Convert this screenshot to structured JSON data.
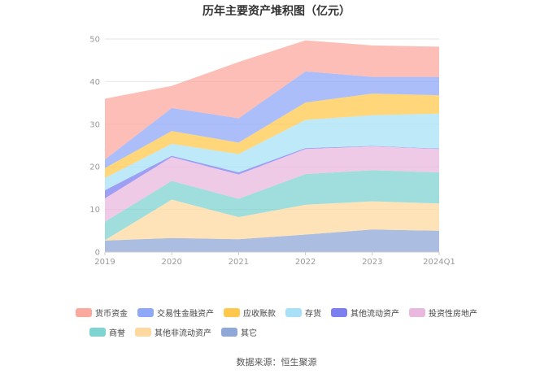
{
  "chart_data": {
    "type": "area",
    "stacked": true,
    "title": "历年主要资产堆积图（亿元）",
    "categories": [
      "2019",
      "2020",
      "2021",
      "2022",
      "2023",
      "2024Q1"
    ],
    "ylim": [
      0,
      50
    ],
    "yticks": [
      0,
      10,
      20,
      30,
      40,
      50
    ],
    "grid": true,
    "legend_position": "bottom",
    "series": [
      {
        "name": "其它",
        "color": "#8fa8d8",
        "values": [
          2.7,
          3.3,
          3.0,
          4.1,
          5.3,
          5.0
        ]
      },
      {
        "name": "其他非流动资产",
        "color": "#fdd9a0",
        "values": [
          0.1,
          9.0,
          5.2,
          7.0,
          6.6,
          6.4
        ]
      },
      {
        "name": "商誉",
        "color": "#7fd3d0",
        "values": [
          4.3,
          4.4,
          4.3,
          7.2,
          7.3,
          7.3
        ]
      },
      {
        "name": "投资性房地产",
        "color": "#eab8de",
        "values": [
          5.5,
          5.6,
          5.7,
          5.9,
          5.6,
          5.5
        ]
      },
      {
        "name": "其他流动资产",
        "color": "#7b7ff0",
        "values": [
          1.9,
          0.3,
          0.5,
          0.2,
          0.1,
          0.1
        ]
      },
      {
        "name": "存货",
        "color": "#a8e1f7",
        "values": [
          2.9,
          2.8,
          4.3,
          6.6,
          7.2,
          8.2
        ]
      },
      {
        "name": "应收账款",
        "color": "#ffc84d",
        "values": [
          2.3,
          3.0,
          2.7,
          4.1,
          5.1,
          4.3
        ]
      },
      {
        "name": "交易性金融资产",
        "color": "#8fa8f7",
        "values": [
          2.0,
          5.4,
          5.7,
          7.3,
          3.9,
          4.3
        ]
      },
      {
        "name": "货币资金",
        "color": "#fba89e",
        "values": [
          14.3,
          5.2,
          13.2,
          7.3,
          7.4,
          7.1
        ]
      }
    ]
  },
  "legend": {
    "row1": [
      {
        "label": "货币资金",
        "color": "#fba89e"
      },
      {
        "label": "交易性金融资产",
        "color": "#8fa8f7"
      },
      {
        "label": "应收账款",
        "color": "#ffc84d"
      },
      {
        "label": "存货",
        "color": "#a8e1f7"
      },
      {
        "label": "其他流动资产",
        "color": "#7b7ff0"
      },
      {
        "label": "投资性房地产",
        "color": "#eab8de"
      }
    ],
    "row2": [
      {
        "label": "商誉",
        "color": "#7fd3d0"
      },
      {
        "label": "其他非流动资产",
        "color": "#fdd9a0"
      },
      {
        "label": "其它",
        "color": "#8fa8d8"
      }
    ]
  },
  "source": "数据来源：恒生聚源"
}
